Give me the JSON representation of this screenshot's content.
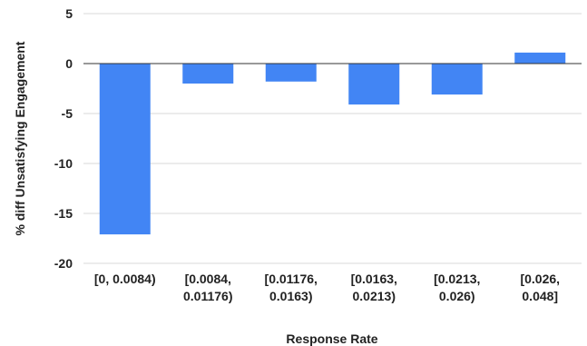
{
  "chart_data": {
    "type": "bar",
    "title": "",
    "xlabel": "Response Rate",
    "ylabel": "% diff Unsatisfying Engagement",
    "ylim": [
      -20,
      5
    ],
    "yticks": [
      5,
      0,
      -5,
      -10,
      -15,
      -20
    ],
    "ytick_labels": [
      "5",
      "0",
      "-5",
      "-10",
      "-15",
      "-20"
    ],
    "grid": true,
    "legend": "none",
    "bar_color": "#4285f4",
    "categories": [
      [
        "[0, 0.0084)"
      ],
      [
        "[0.0084,",
        "0.01176)"
      ],
      [
        "[0.01176,",
        "0.0163)"
      ],
      [
        "[0.0163,",
        "0.0213)"
      ],
      [
        "[0.0213,",
        "0.026)"
      ],
      [
        "[0.026,",
        "0.048]"
      ]
    ],
    "values": [
      -17.1,
      -2.0,
      -1.8,
      -4.1,
      -3.1,
      1.1
    ]
  }
}
